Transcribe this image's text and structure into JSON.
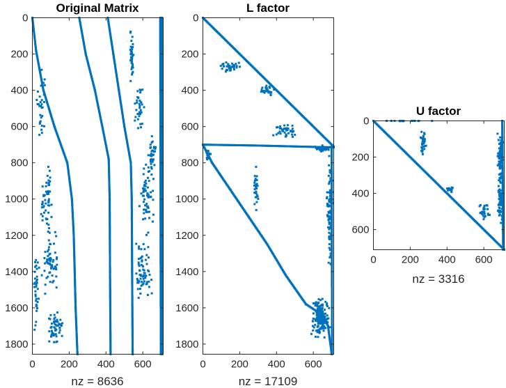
{
  "colors": {
    "marker": "#0072BD",
    "axis": "#262626",
    "background": "#ffffff"
  },
  "chart_data": [
    {
      "type": "scatter",
      "subtype": "sparsity-pattern",
      "title": "Original Matrix",
      "xlabel": "nz = 8636",
      "nnz": 8636,
      "rows": 1856,
      "cols": 711,
      "xlim": [
        0,
        711
      ],
      "ylim": [
        0,
        1856
      ],
      "y_direction": "reversed",
      "x_ticks": [
        0,
        200,
        400,
        600
      ],
      "y_ticks": [
        0,
        200,
        400,
        600,
        800,
        1000,
        1200,
        1400,
        1600,
        1800
      ],
      "x_tick_labels": [
        "0",
        "200",
        "400",
        "600"
      ],
      "y_tick_labels": [
        "0",
        "200",
        "400",
        "600",
        "800",
        "1000",
        "1200",
        "1400",
        "1600",
        "1800"
      ],
      "bands": [
        {
          "points": [
            [
              0,
              0
            ],
            [
              20,
              180
            ],
            [
              60,
              400
            ],
            [
              120,
              600
            ],
            [
              190,
              800
            ],
            [
              215,
              1000
            ],
            [
              225,
              1200
            ],
            [
              235,
              1600
            ],
            [
              245,
              1856
            ]
          ]
        },
        {
          "points": [
            [
              255,
              0
            ],
            [
              290,
              200
            ],
            [
              340,
              400
            ],
            [
              380,
              600
            ],
            [
              415,
              780
            ],
            [
              420,
              1000
            ],
            [
              422,
              1400
            ],
            [
              425,
              1856
            ]
          ]
        },
        {
          "points": [
            [
              410,
              0
            ],
            [
              440,
              200
            ],
            [
              470,
              400
            ],
            [
              500,
              600
            ],
            [
              535,
              800
            ],
            [
              540,
              1000
            ],
            [
              542,
              1400
            ],
            [
              545,
              1856
            ]
          ]
        },
        {
          "points": [
            [
              705,
              0
            ],
            [
              706,
              1856
            ]
          ]
        },
        {
          "points": [
            [
              695,
              0
            ],
            [
              698,
              1856
            ]
          ]
        }
      ],
      "clusters": [
        {
          "center": [
            540,
            200
          ],
          "spread": [
            20,
            200
          ],
          "count": 40
        },
        {
          "center": [
            580,
            500
          ],
          "spread": [
            30,
            150
          ],
          "count": 35
        },
        {
          "center": [
            650,
            750
          ],
          "spread": [
            30,
            120
          ],
          "count": 40
        },
        {
          "center": [
            620,
            1000
          ],
          "spread": [
            50,
            200
          ],
          "count": 60
        },
        {
          "center": [
            600,
            1400
          ],
          "spread": [
            60,
            250
          ],
          "count": 70
        },
        {
          "center": [
            50,
            500
          ],
          "spread": [
            30,
            300
          ],
          "count": 30
        },
        {
          "center": [
            80,
            1000
          ],
          "spread": [
            40,
            250
          ],
          "count": 55
        },
        {
          "center": [
            100,
            1350
          ],
          "spread": [
            60,
            200
          ],
          "count": 60
        },
        {
          "center": [
            120,
            1700
          ],
          "spread": [
            60,
            120
          ],
          "count": 55
        },
        {
          "center": [
            20,
            1500
          ],
          "spread": [
            20,
            300
          ],
          "count": 35
        }
      ]
    },
    {
      "type": "scatter",
      "subtype": "sparsity-pattern",
      "title": "L factor",
      "xlabel": "nz = 17109",
      "nnz": 17109,
      "rows": 1856,
      "cols": 711,
      "xlim": [
        0,
        711
      ],
      "ylim": [
        0,
        1856
      ],
      "y_direction": "reversed",
      "x_ticks": [
        0,
        200,
        400,
        600
      ],
      "y_ticks": [
        0,
        200,
        400,
        600,
        800,
        1000,
        1200,
        1400,
        1600,
        1800
      ],
      "x_tick_labels": [
        "0",
        "200",
        "400",
        "600"
      ],
      "y_tick_labels": [
        "0",
        "200",
        "400",
        "600",
        "800",
        "1000",
        "1200",
        "1400",
        "1600",
        "1800"
      ],
      "bands": [
        {
          "points": [
            [
              0,
              0
            ],
            [
              711,
              711
            ]
          ]
        },
        {
          "points": [
            [
              0,
              700
            ],
            [
              50,
              800
            ],
            [
              150,
              950
            ],
            [
              250,
              1100
            ],
            [
              350,
              1250
            ],
            [
              450,
              1420
            ],
            [
              560,
              1580
            ],
            [
              650,
              1640
            ],
            [
              680,
              1700
            ],
            [
              700,
              1856
            ]
          ]
        },
        {
          "points": [
            [
              700,
              711
            ],
            [
              702,
              1856
            ]
          ]
        },
        {
          "points": [
            [
              0,
              700
            ],
            [
              300,
              705
            ],
            [
              711,
              715
            ]
          ]
        }
      ],
      "clusters": [
        {
          "center": [
            150,
            270
          ],
          "spread": [
            80,
            40
          ],
          "count": 35
        },
        {
          "center": [
            350,
            400
          ],
          "spread": [
            60,
            40
          ],
          "count": 25
        },
        {
          "center": [
            450,
            620
          ],
          "spread": [
            80,
            50
          ],
          "count": 40
        },
        {
          "center": [
            650,
            720
          ],
          "spread": [
            50,
            20
          ],
          "count": 45
        },
        {
          "center": [
            290,
            950
          ],
          "spread": [
            15,
            150
          ],
          "count": 30
        },
        {
          "center": [
            690,
            1100
          ],
          "spread": [
            20,
            400
          ],
          "count": 100
        },
        {
          "center": [
            640,
            1650
          ],
          "spread": [
            60,
            150
          ],
          "count": 160
        },
        {
          "center": [
            30,
            760
          ],
          "spread": [
            20,
            40
          ],
          "count": 20
        }
      ]
    },
    {
      "type": "scatter",
      "subtype": "sparsity-pattern",
      "title": "U factor",
      "xlabel": "nz = 3316",
      "nnz": 3316,
      "rows": 711,
      "cols": 711,
      "xlim": [
        0,
        711
      ],
      "ylim": [
        0,
        711
      ],
      "y_direction": "reversed",
      "x_ticks": [
        0,
        200,
        400,
        600
      ],
      "y_ticks": [
        0,
        200,
        400,
        600
      ],
      "x_tick_labels": [
        "0",
        "200",
        "400",
        "600"
      ],
      "y_tick_labels": [
        "0",
        "200",
        "400",
        "600"
      ],
      "bands": [
        {
          "points": [
            [
              0,
              0
            ],
            [
              711,
              711
            ]
          ]
        },
        {
          "points": [
            [
              700,
              0
            ],
            [
              705,
              711
            ]
          ]
        }
      ],
      "clusters": [
        {
          "center": [
            270,
            120
          ],
          "spread": [
            20,
            80
          ],
          "count": 30
        },
        {
          "center": [
            690,
            200
          ],
          "spread": [
            20,
            180
          ],
          "count": 80
        },
        {
          "center": [
            420,
            380
          ],
          "spread": [
            25,
            20
          ],
          "count": 12
        },
        {
          "center": [
            600,
            500
          ],
          "spread": [
            40,
            60
          ],
          "count": 30
        },
        {
          "center": [
            690,
            480
          ],
          "spread": [
            20,
            150
          ],
          "count": 60
        },
        {
          "center": [
            150,
            0
          ],
          "spread": [
            200,
            5
          ],
          "count": 15
        }
      ]
    }
  ]
}
